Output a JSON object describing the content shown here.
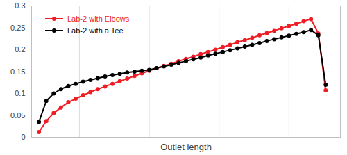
{
  "chart_data": {
    "type": "line",
    "x_label": "Outlet length",
    "x": [
      1,
      2,
      3,
      4,
      5,
      6,
      7,
      8,
      9,
      10,
      11,
      12,
      13,
      14,
      15,
      16,
      17,
      18,
      19,
      20,
      21,
      22,
      23,
      24,
      25,
      26,
      27,
      28,
      29,
      30,
      31,
      32,
      33,
      34,
      35,
      36,
      37,
      38,
      39,
      40
    ],
    "series": [
      {
        "name": "Lab-2 with Elbows",
        "color": "#ee1c25",
        "marker": "circle",
        "values": [
          0.012,
          0.037,
          0.055,
          0.068,
          0.08,
          0.088,
          0.096,
          0.103,
          0.11,
          0.116,
          0.122,
          0.128,
          0.134,
          0.14,
          0.146,
          0.152,
          0.158,
          0.163,
          0.168,
          0.174,
          0.179,
          0.184,
          0.19,
          0.195,
          0.2,
          0.206,
          0.211,
          0.217,
          0.222,
          0.227,
          0.233,
          0.238,
          0.243,
          0.249,
          0.254,
          0.259,
          0.265,
          0.27,
          0.237,
          0.107
        ]
      },
      {
        "name": "Lab-2 with a Tee",
        "color": "#000000",
        "marker": "circle",
        "values": [
          0.035,
          0.083,
          0.1,
          0.11,
          0.117,
          0.122,
          0.127,
          0.131,
          0.135,
          0.139,
          0.142,
          0.145,
          0.148,
          0.15,
          0.152,
          0.154,
          0.158,
          0.162,
          0.166,
          0.17,
          0.174,
          0.178,
          0.182,
          0.187,
          0.191,
          0.195,
          0.199,
          0.203,
          0.207,
          0.211,
          0.215,
          0.22,
          0.224,
          0.228,
          0.232,
          0.236,
          0.24,
          0.245,
          0.233,
          0.12
        ]
      }
    ],
    "xlim": [
      0,
      42
    ],
    "xticks": [
      6.5,
      16,
      25.5,
      35
    ],
    "ylim": [
      0,
      0.3
    ],
    "yticks": [
      0,
      0.05,
      0.1,
      0.15,
      0.2,
      0.25,
      0.3
    ],
    "grid": "x",
    "tick_labels": "y",
    "legend": "top-left"
  }
}
